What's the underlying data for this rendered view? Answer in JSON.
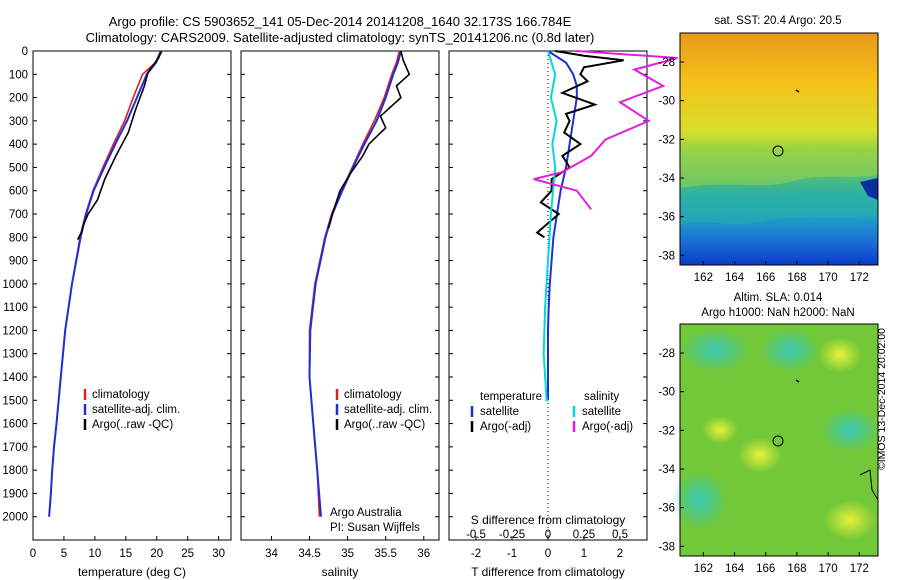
{
  "header": {
    "line1": "Argo profile: CS 5903652_141 05-Dec-2014 20141208_1640 32.173S 166.784E",
    "line2": "Climatology: CARS2009. Satellite-adjusted climatology: synTS_20141206.nc (0.8d later)"
  },
  "credit": "©IMOS 13-Dec-2014 20:02:00",
  "colors": {
    "climatology": "#e02020",
    "satellite": "#1f2fd8",
    "argo": "#000000",
    "sal_satellite": "#00d8e0",
    "sal_argo": "#e020e0"
  },
  "chart_data": [
    {
      "type": "line",
      "xlabel": "temperature (deg C)",
      "xlim": [
        0,
        32
      ],
      "ylim": [
        2100,
        0
      ],
      "xticks": [
        "0",
        "5",
        "10",
        "15",
        "20",
        "25",
        "30"
      ],
      "yticks": [
        "0",
        "100",
        "200",
        "300",
        "400",
        "500",
        "600",
        "700",
        "800",
        "900",
        "1000",
        "1100",
        "1200",
        "1300",
        "1400",
        "1500",
        "1600",
        "1700",
        "1800",
        "1900",
        "2000"
      ],
      "legend": [
        "climatology",
        "satellite-adj. clim.",
        "Argo(..raw -QC)"
      ],
      "legend_position": "bottom-center",
      "series": [
        {
          "name": "climatology",
          "x": [
            20.6,
            19.8,
            17.7,
            16.2,
            14.8,
            13.0,
            11.3,
            9.7,
            8.5,
            7.6,
            6.3,
            5.2,
            4.5,
            3.8,
            3.4,
            3.1,
            2.9,
            2.6
          ],
          "y": [
            0,
            50,
            100,
            200,
            300,
            400,
            500,
            600,
            700,
            800,
            1000,
            1200,
            1400,
            1600,
            1700,
            1800,
            1900,
            2000
          ]
        },
        {
          "name": "satellite-adj. clim.",
          "x": [
            20.7,
            19.9,
            18.4,
            16.8,
            15.2,
            13.3,
            11.5,
            9.8,
            8.6,
            7.7,
            6.3,
            5.2,
            4.5,
            3.8,
            3.4,
            3.1,
            2.9,
            2.6
          ],
          "y": [
            0,
            50,
            100,
            200,
            300,
            400,
            500,
            600,
            700,
            800,
            1000,
            1200,
            1400,
            1600,
            1700,
            1800,
            1900,
            2000
          ]
        },
        {
          "name": "Argo(..raw -QC)",
          "x": [
            20.8,
            20.3,
            18.6,
            18.0,
            16.6,
            15.4,
            13.4,
            11.6,
            10.4,
            8.9,
            8.1,
            7.8,
            7.2
          ],
          "y": [
            0,
            30,
            90,
            150,
            250,
            350,
            450,
            550,
            640,
            700,
            750,
            780,
            810
          ]
        }
      ]
    },
    {
      "type": "line",
      "xlabel": "salinity",
      "xlim": [
        33.6,
        36.2
      ],
      "ylim": [
        2100,
        0
      ],
      "xticks": [
        "34",
        "34.5",
        "35",
        "35.5",
        "36"
      ],
      "legend": [
        "climatology",
        "satellite-adj. clim.",
        "Argo(..raw -QC)"
      ],
      "legend_position": "bottom-right",
      "annotation": [
        "Argo Australia",
        "PI: Susan Wijffels"
      ],
      "series": [
        {
          "name": "climatology",
          "x": [
            35.68,
            35.64,
            35.58,
            35.48,
            35.35,
            35.2,
            35.06,
            34.92,
            34.79,
            34.7,
            34.57,
            34.5,
            34.5,
            34.55,
            34.6,
            34.63
          ],
          "y": [
            0,
            50,
            100,
            200,
            300,
            400,
            500,
            600,
            700,
            800,
            1000,
            1200,
            1400,
            1600,
            1800,
            2000
          ]
        },
        {
          "name": "satellite-adj. clim.",
          "x": [
            35.7,
            35.66,
            35.6,
            35.5,
            35.38,
            35.22,
            35.07,
            34.93,
            34.8,
            34.71,
            34.58,
            34.51,
            34.5,
            34.55,
            34.6,
            34.65
          ],
          "y": [
            0,
            50,
            100,
            200,
            300,
            400,
            500,
            600,
            700,
            800,
            1000,
            1200,
            1400,
            1600,
            1800,
            2000
          ]
        },
        {
          "name": "Argo(..raw -QC)",
          "x": [
            35.7,
            35.73,
            35.81,
            35.64,
            35.7,
            35.43,
            35.5,
            35.28,
            35.2,
            35.05,
            34.9,
            34.82,
            34.75
          ],
          "y": [
            0,
            40,
            100,
            150,
            200,
            280,
            330,
            400,
            450,
            520,
            600,
            680,
            760
          ]
        }
      ]
    },
    {
      "type": "line",
      "xlabel": "T difference from climatology",
      "x2label": "S difference from climatology",
      "xlim": [
        -2.75,
        2.75
      ],
      "ylim": [
        2100,
        0
      ],
      "xticks": [
        "-2",
        "-1",
        "0",
        "1",
        "2"
      ],
      "x2ticks": [
        "-0.5",
        "-0.25",
        "0",
        "0.25",
        "0.5"
      ],
      "legend_left": [
        "temperature",
        "satellite",
        "Argo(-adj)"
      ],
      "legend_right": [
        "salinity",
        "satellite",
        "Argo(-adj)"
      ],
      "series": [
        {
          "name": "satellite",
          "x": [
            0.0,
            0.5,
            0.7,
            0.8,
            0.8,
            0.7,
            0.6,
            0.5,
            0.35,
            0.25,
            0.15,
            0.1,
            0.05,
            0.02,
            0.0,
            0.0
          ],
          "y": [
            0,
            50,
            100,
            150,
            200,
            300,
            400,
            500,
            600,
            700,
            800,
            900,
            1000,
            1100,
            1200,
            1500
          ]
        },
        {
          "name": "Argo(-adj)",
          "x": [
            0.2,
            1.0,
            2.1,
            1.0,
            0.9,
            1.1,
            0.4,
            1.3,
            0.5,
            0.6,
            0.45,
            0.9,
            0.4,
            0.6,
            0.1,
            0.1,
            -0.2,
            0.3,
            -0.3,
            -0.1
          ],
          "y": [
            0,
            20,
            40,
            70,
            100,
            130,
            180,
            230,
            270,
            300,
            350,
            400,
            450,
            500,
            550,
            600,
            650,
            700,
            780,
            800
          ]
        },
        {
          "name": "salinity satellite",
          "x": [
            0.0,
            0.05,
            0.02,
            0.06,
            0.03,
            0.05,
            0.02,
            0.0,
            -0.02,
            -0.03,
            -0.01,
            0.0
          ],
          "y": [
            0,
            100,
            200,
            300,
            400,
            500,
            700,
            900,
            1100,
            1300,
            1500,
            1500
          ]
        },
        {
          "name": "salinity Argo(-adj)",
          "x": [
            0.2,
            0.9,
            0.6,
            0.8,
            0.5,
            0.7,
            0.4,
            0.3,
            0.1,
            -0.1,
            0.2,
            0.3
          ],
          "y": [
            0,
            30,
            80,
            150,
            220,
            300,
            380,
            450,
            520,
            550,
            600,
            680
          ]
        }
      ]
    }
  ],
  "maps": {
    "sst": {
      "title": "sat. SST: 20.4 Argo: 20.5",
      "xticks": [
        "162",
        "164",
        "166",
        "168",
        "170",
        "172"
      ],
      "yticks": [
        "-28",
        "-30",
        "-32",
        "-34",
        "-36",
        "-38"
      ]
    },
    "sla": {
      "title1": "Altim. SLA: 0.014",
      "title2": "Argo h1000: NaN h2000: NaN",
      "xticks": [
        "162",
        "164",
        "166",
        "168",
        "170",
        "172"
      ],
      "yticks": [
        "-28",
        "-30",
        "-32",
        "-34",
        "-36",
        "-38"
      ]
    },
    "lon_range": [
      160.5,
      173.2
    ],
    "lat_range": [
      -38.5,
      -26.5
    ],
    "argo_position": {
      "lon": 166.784,
      "lat": -32.173
    }
  }
}
